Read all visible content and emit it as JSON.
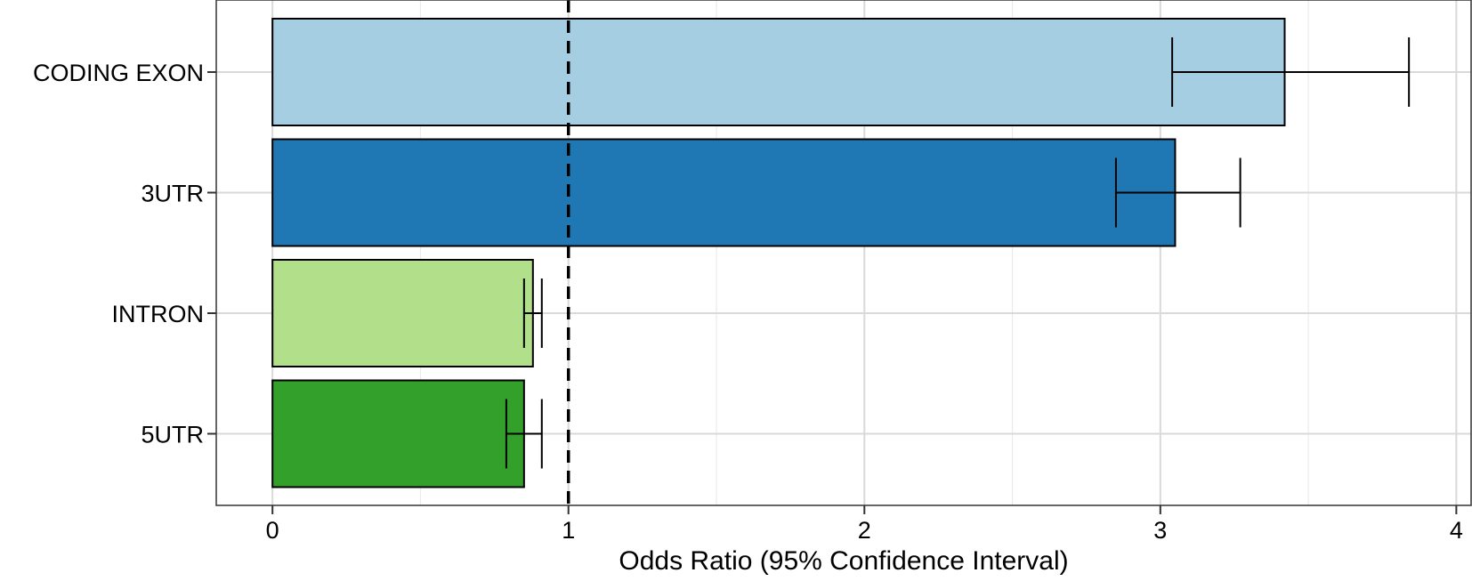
{
  "chart_data": {
    "type": "bar",
    "orientation": "horizontal",
    "categories": [
      "CODING EXON",
      "3UTR",
      "INTRON",
      "5UTR"
    ],
    "values": [
      3.42,
      3.05,
      0.88,
      0.85
    ],
    "ci_lower": [
      3.04,
      2.85,
      0.85,
      0.79
    ],
    "ci_upper": [
      3.84,
      3.27,
      0.91,
      0.91
    ],
    "colors": [
      "#a6cee3",
      "#1f78b4",
      "#b2df8a",
      "#33a02c"
    ],
    "xlabel": "Odds Ratio (95% Confidence Interval)",
    "ylabel": "",
    "xlim": [
      -0.19,
      4.05
    ],
    "x_ticks": [
      "0",
      "1",
      "2",
      "3",
      "4"
    ],
    "reference_line": 1,
    "reference_line_style": "dashed",
    "grid": true
  }
}
